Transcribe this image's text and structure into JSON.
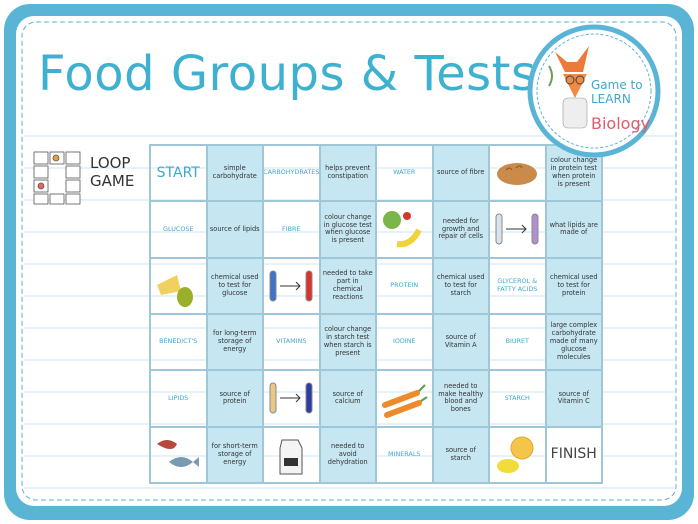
{
  "header": {
    "title": "Food Groups & Tests"
  },
  "logo": {
    "line1": "Game to",
    "line2": "LEARN",
    "line3": "Biology"
  },
  "side": {
    "label": "LOOP GAME"
  },
  "grid": {
    "rows": [
      [
        "START",
        "simple carbohydrate",
        "CARBOHYDRATES",
        "helps prevent constipation",
        "WATER",
        "source of fibre",
        null,
        "colour change in protein test when protein is present"
      ],
      [
        "GLUCOSE",
        "source of lipids",
        "FIBRE",
        "colour change in glucose test when glucose is present",
        null,
        "needed for growth and repair of cells",
        null,
        "what lipids are made of"
      ],
      [
        null,
        "chemical used to test for glucose",
        null,
        "needed to take part in chemical reactions",
        "PROTEIN",
        "chemical used to test for starch",
        "GLYCEROL & FATTY ACIDS",
        "chemical used to test for protein"
      ],
      [
        "BENEDICT'S",
        "for long-term storage of energy",
        "VITAMINS",
        "colour change in starch test when starch is present",
        "IODINE",
        "source of Vitamin A",
        "BIURET",
        "large complex carbohydrate made of many glucose molecules"
      ],
      [
        "LIPIDS",
        "source of protein",
        null,
        "source of calcium",
        null,
        "needed to make healthy blood and bones",
        "STARCH",
        "source of Vitamin C"
      ],
      [
        null,
        "for short-term storage of energy",
        null,
        "needed to avoid dehydration",
        "MINERALS",
        "source of starch",
        null,
        "FINISH"
      ]
    ]
  }
}
